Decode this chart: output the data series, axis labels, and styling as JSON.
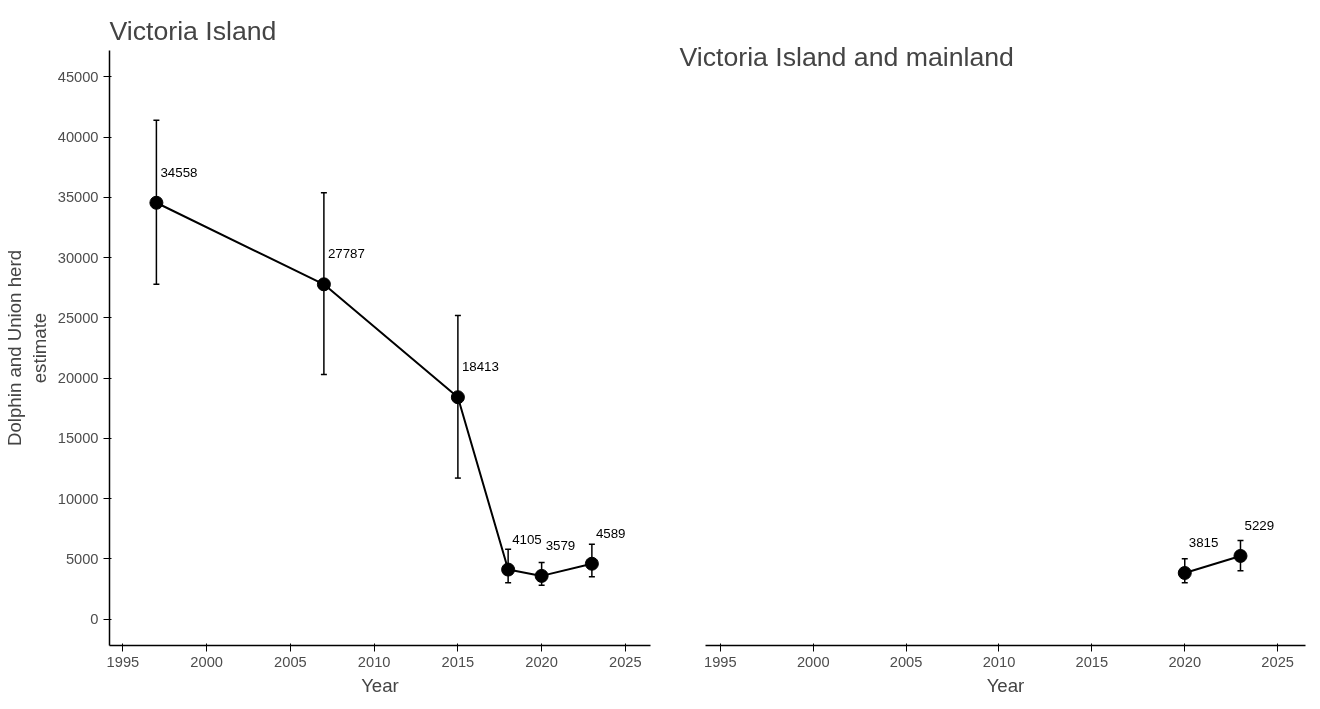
{
  "chart_data": [
    {
      "type": "line",
      "title": "Victoria Island",
      "xlabel": "Year",
      "ylabel": "Dolphin and Union herd\nestimate",
      "x": [
        1997,
        2007,
        2015,
        2018,
        2020,
        2023
      ],
      "series": [
        {
          "color": "#000000",
          "values": [
            34558,
            27787,
            18413,
            4105,
            3579,
            4589
          ],
          "errors": [
            [
              27800,
              41400
            ],
            [
              20300,
              35400
            ],
            [
              11700,
              25200
            ],
            [
              3000,
              5800
            ],
            [
              2800,
              4700
            ],
            [
              3500,
              6200
            ]
          ]
        }
      ],
      "data_labels": true,
      "marker": "circle",
      "line_style": "solid",
      "grid": false,
      "xlim": [
        1994.2,
        2026.5
      ],
      "xticks": [
        1995,
        2000,
        2005,
        2010,
        2015,
        2020,
        2025
      ],
      "ylim": [
        -2200,
        47200
      ],
      "yticks": [
        0,
        5000,
        10000,
        15000,
        20000,
        25000,
        30000,
        35000,
        40000,
        45000
      ]
    },
    {
      "type": "line",
      "title": "Victoria Island and mainland",
      "xlabel": "Year",
      "x": [
        2020,
        2023
      ],
      "series": [
        {
          "color": "#000000",
          "values": [
            3815,
            5229
          ],
          "errors": [
            [
              3000,
              5000
            ],
            [
              4000,
              6500
            ]
          ]
        }
      ],
      "data_labels": true,
      "marker": "circle",
      "line_style": "solid",
      "grid": false,
      "tick_labels": "x",
      "xlim": [
        1994.2,
        2026.5
      ],
      "xticks": [
        1995,
        2000,
        2005,
        2010,
        2015,
        2020,
        2025
      ],
      "ylim": [
        -2200,
        45000
      ],
      "yticks": [
        0,
        5000,
        10000,
        15000,
        20000,
        25000,
        30000,
        35000,
        40000,
        45000
      ]
    }
  ]
}
